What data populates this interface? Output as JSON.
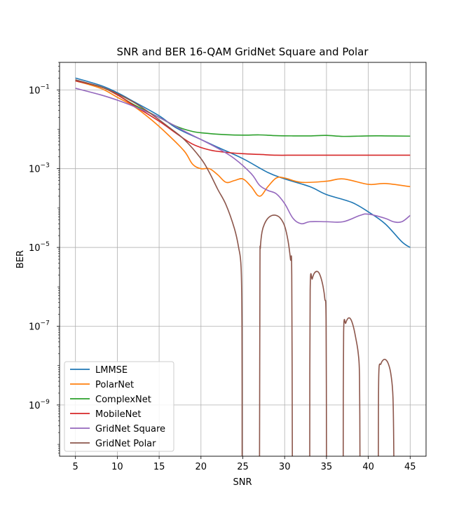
{
  "chart_data": {
    "type": "line",
    "title": "SNR and BER 16-QAM GridNet Square and Polar",
    "xlabel": "SNR",
    "ylabel": "BER",
    "xscale": "linear",
    "yscale": "log",
    "xlim": [
      3.1,
      46.9
    ],
    "ylim": [
      5e-11,
      0.5
    ],
    "x_ticks": [
      5,
      10,
      15,
      20,
      25,
      30,
      35,
      40,
      45
    ],
    "x_tick_labels": [
      "5",
      "10",
      "15",
      "20",
      "25",
      "30",
      "35",
      "40",
      "45"
    ],
    "y_ticks": [
      1e-09,
      1e-07,
      1e-05,
      0.001,
      0.1
    ],
    "y_tick_labels": [
      {
        "base": "10",
        "exp": "−9"
      },
      {
        "base": "10",
        "exp": "−7"
      },
      {
        "base": "10",
        "exp": "−5"
      },
      {
        "base": "10",
        "exp": "−3"
      },
      {
        "base": "10",
        "exp": "−1"
      }
    ],
    "grid": true,
    "legend_position": "lower-left",
    "series": [
      {
        "name": "LMMSE",
        "color": "#1f77b4",
        "x": [
          5,
          8,
          10,
          12,
          15,
          17,
          20,
          22,
          25,
          28,
          30,
          33,
          35,
          38,
          40,
          42,
          44,
          45
        ],
        "y": [
          0.2,
          0.13,
          0.085,
          0.05,
          0.022,
          0.011,
          0.0055,
          0.0035,
          0.0018,
          0.0008,
          0.00055,
          0.00035,
          0.00022,
          0.00014,
          8e-05,
          4e-05,
          1.4e-05,
          1e-05
        ]
      },
      {
        "name": "PolarNet",
        "color": "#ff7f0e",
        "x": [
          5,
          8,
          10,
          12,
          14,
          16,
          18,
          19,
          20,
          21,
          22,
          23,
          24,
          25,
          26,
          27,
          28,
          29,
          30,
          32,
          35,
          37,
          40,
          42,
          45
        ],
        "y": [
          0.17,
          0.11,
          0.065,
          0.038,
          0.018,
          0.0075,
          0.0028,
          0.0013,
          0.001,
          0.001,
          0.0007,
          0.00045,
          0.0005,
          0.00055,
          0.00035,
          0.0002,
          0.00035,
          0.00058,
          0.00058,
          0.00045,
          0.00048,
          0.00055,
          0.0004,
          0.00042,
          0.00035
        ]
      },
      {
        "name": "ComplexNet",
        "color": "#2ca02c",
        "x": [
          5,
          8,
          10,
          12,
          15,
          17,
          19,
          21,
          23,
          25,
          27,
          29,
          31,
          33,
          35,
          37,
          40,
          42,
          45
        ],
        "y": [
          0.17,
          0.12,
          0.075,
          0.042,
          0.02,
          0.012,
          0.0088,
          0.0078,
          0.0073,
          0.0071,
          0.0072,
          0.0069,
          0.0068,
          0.0068,
          0.007,
          0.0066,
          0.0068,
          0.0068,
          0.0067
        ]
      },
      {
        "name": "MobileNet",
        "color": "#d62728",
        "x": [
          5,
          8,
          10,
          12,
          15,
          17,
          19,
          21,
          23,
          25,
          27,
          29,
          31,
          33,
          35,
          38,
          40,
          42,
          45
        ],
        "y": [
          0.17,
          0.12,
          0.075,
          0.04,
          0.016,
          0.008,
          0.0042,
          0.003,
          0.0026,
          0.0024,
          0.0023,
          0.0022,
          0.0022,
          0.0022,
          0.0022,
          0.0022,
          0.0022,
          0.0022,
          0.0022
        ]
      },
      {
        "name": "GridNet Square",
        "color": "#9467bd",
        "x": [
          5,
          8,
          10,
          12,
          15,
          18,
          20,
          22,
          24,
          26,
          27,
          28,
          29,
          30,
          31,
          32,
          33,
          35,
          37,
          39,
          40,
          42,
          43,
          44,
          45
        ],
        "y": [
          0.11,
          0.075,
          0.055,
          0.038,
          0.02,
          0.009,
          0.0055,
          0.0033,
          0.0018,
          0.00075,
          0.00038,
          0.00028,
          0.00023,
          0.00013,
          5.5e-05,
          4e-05,
          4.5e-05,
          4.5e-05,
          4.5e-05,
          6.5e-05,
          7e-05,
          5.5e-05,
          4.5e-05,
          4.5e-05,
          6.5e-05
        ]
      },
      {
        "name": "GridNet Polar",
        "color": "#8c564b",
        "segments": [
          {
            "x": [
              5,
              8,
              10,
              12,
              14,
              16,
              18,
              20,
              21,
              22,
              23,
              24,
              24.5,
              24.8,
              24.9,
              24.92
            ],
            "y": [
              0.18,
              0.12,
              0.08,
              0.048,
              0.025,
              0.012,
              0.0055,
              0.0018,
              0.0008,
              0.0003,
              0.00012,
              3e-05,
              1e-05,
              3e-06,
              1e-07,
              5e-11
            ]
          },
          {
            "x": [
              27.0,
              27.05,
              27.1,
              27.3,
              27.6,
              28,
              28.5,
              29,
              29.5,
              30,
              30.4,
              30.7,
              30.85,
              30.92
            ],
            "y": [
              5e-11,
              3e-06,
              1e-05,
              2.5e-05,
              4e-05,
              5.5e-05,
              6.5e-05,
              6.5e-05,
              5.5e-05,
              3.5e-05,
              1.5e-05,
              5e-06,
              2e-06,
              5e-11
            ]
          },
          {
            "x": [
              33.0,
              33.05,
              33.3,
              33.6,
              34.0,
              34.3,
              34.6,
              34.8,
              34.95,
              35.0
            ],
            "y": [
              5e-11,
              8e-07,
              1.6e-06,
              2.3e-06,
              2.4e-06,
              1.8e-06,
              1e-06,
              5e-07,
              1.5e-07,
              5e-11
            ]
          },
          {
            "x": [
              37.0,
              37.05,
              37.3,
              37.6,
              37.9,
              38.2,
              38.5,
              38.8,
              38.95,
              39.0
            ],
            "y": [
              5e-11,
              7e-08,
              1.2e-07,
              1.6e-07,
              1.5e-07,
              1e-07,
              5e-08,
              2e-08,
              5e-09,
              5e-11
            ]
          },
          {
            "x": [
              41.2,
              41.25,
              41.5,
              41.8,
              42.1,
              42.4,
              42.7,
              42.95,
              43.05
            ],
            "y": [
              5e-11,
              6e-09,
              1.1e-08,
              1.4e-08,
              1.4e-08,
              1.1e-08,
              6e-09,
              1.5e-09,
              5e-11
            ]
          }
        ]
      }
    ]
  }
}
